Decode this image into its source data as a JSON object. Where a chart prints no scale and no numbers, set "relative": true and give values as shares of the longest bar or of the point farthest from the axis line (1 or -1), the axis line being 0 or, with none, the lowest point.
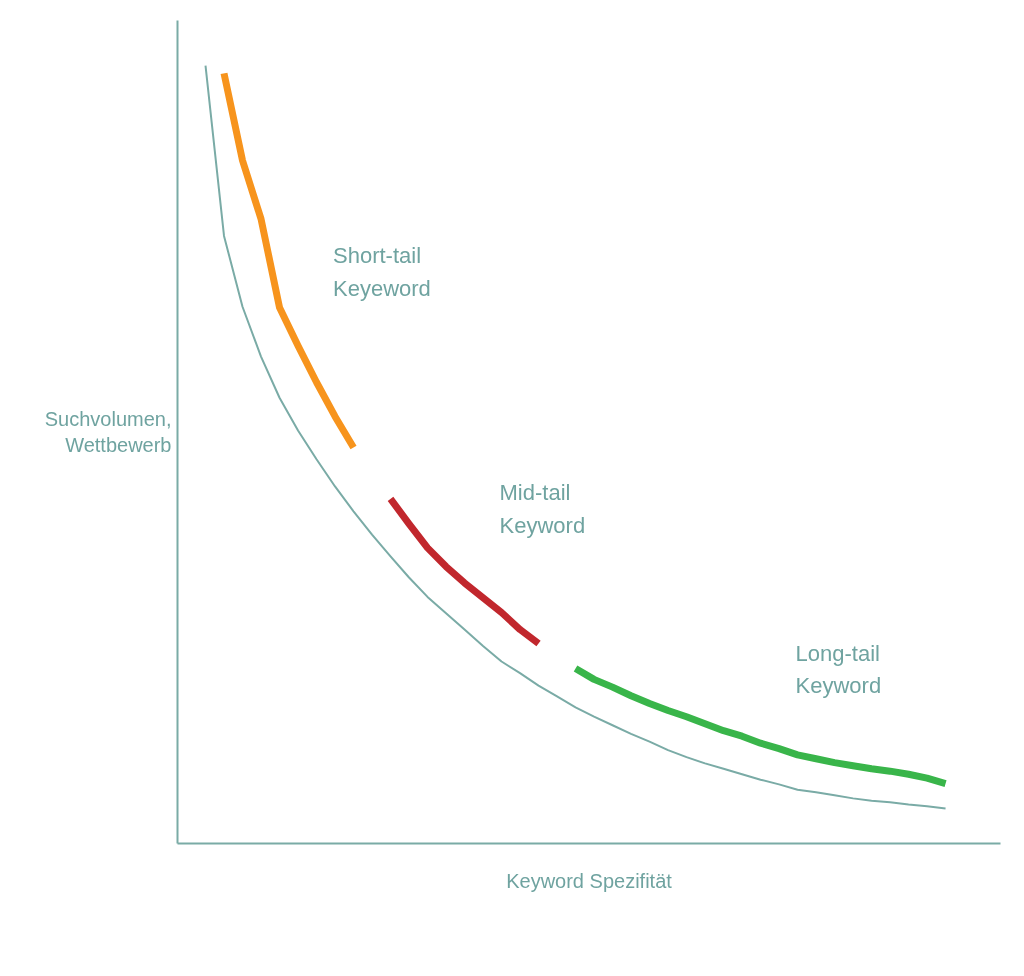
{
  "chart_data": {
    "type": "line",
    "relative": true,
    "xlabel": "Keyword Spezifität",
    "ylabel": "Suchvolumen,\nWettbewerb",
    "grid": false,
    "line_style": "solid",
    "marker": "none",
    "categories": [
      null,
      null,
      null,
      null,
      null,
      null,
      null,
      null,
      null,
      null,
      null,
      null,
      null,
      null,
      null,
      null,
      null,
      null,
      null,
      null,
      null,
      null,
      null,
      null,
      null,
      null,
      null,
      null,
      null,
      null,
      null,
      null,
      null,
      null,
      null,
      null,
      null,
      null,
      null,
      null,
      null
    ],
    "series": [
      {
        "color": "#7aaba6",
        "values": [
          1.0,
          0.781,
          0.69,
          0.626,
          0.573,
          0.531,
          0.494,
          0.459,
          0.427,
          0.397,
          0.369,
          0.342,
          0.317,
          0.296,
          0.275,
          0.254,
          0.234,
          0.219,
          0.203,
          0.189,
          0.175,
          0.163,
          0.152,
          0.141,
          0.131,
          0.12,
          0.111,
          0.103,
          0.096,
          0.089,
          0.082,
          0.076,
          0.069,
          0.066,
          0.062,
          0.058,
          0.055,
          0.053,
          0.05,
          0.048,
          0.045
        ]
      },
      {
        "name": "Short-tail\nKeyeword",
        "color": "#f7941d",
        "values": [
          null,
          0.99,
          0.878,
          0.803,
          0.689,
          0.64,
          0.593,
          0.549,
          0.509,
          null,
          null,
          null,
          null,
          null,
          null,
          null,
          null,
          null,
          null,
          null,
          null,
          null,
          null,
          null,
          null,
          null,
          null,
          null,
          null,
          null,
          null,
          null,
          null,
          null,
          null,
          null,
          null,
          null,
          null,
          null,
          null
        ]
      },
      {
        "name": "Mid-tail\nKeyword",
        "color": "#c1272d",
        "values": [
          null,
          null,
          null,
          null,
          null,
          null,
          null,
          null,
          null,
          null,
          0.443,
          0.411,
          0.38,
          0.356,
          0.335,
          0.316,
          0.297,
          0.275,
          0.257,
          null,
          null,
          null,
          null,
          null,
          null,
          null,
          null,
          null,
          null,
          null,
          null,
          null,
          null,
          null,
          null,
          null,
          null,
          null,
          null,
          null,
          null
        ]
      },
      {
        "name": "Long-tail\nKeyword",
        "color": "#39b54a",
        "values": [
          null,
          null,
          null,
          null,
          null,
          null,
          null,
          null,
          null,
          null,
          null,
          null,
          null,
          null,
          null,
          null,
          null,
          null,
          null,
          null,
          0.225,
          0.211,
          0.201,
          0.19,
          0.18,
          0.171,
          0.163,
          0.154,
          0.145,
          0.138,
          0.129,
          0.122,
          0.114,
          0.109,
          0.104,
          0.1,
          0.096,
          0.093,
          0.089,
          0.084,
          0.077
        ]
      }
    ]
  }
}
